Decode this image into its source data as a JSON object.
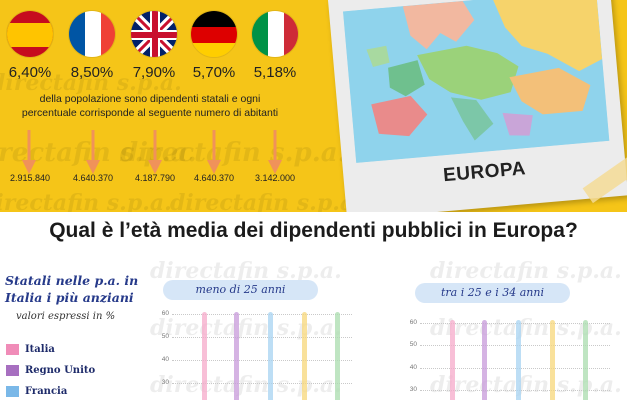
{
  "flags": [
    {
      "country": "Spagna",
      "percent": "6,40%",
      "icon": "spain-flag-icon"
    },
    {
      "country": "Francia",
      "percent": "8,50%",
      "icon": "france-flag-icon"
    },
    {
      "country": "Regno Unito",
      "percent": "7,90%",
      "icon": "uk-flag-icon"
    },
    {
      "country": "Germania",
      "percent": "5,70%",
      "icon": "germany-flag-icon"
    },
    {
      "country": "Italia",
      "percent": "5,18%",
      "icon": "italy-flag-icon"
    }
  ],
  "description": {
    "line1": "della popolazione sono dipendenti statali e ogni",
    "line2": "percentuale corrisponde al seguente numero di abitanti"
  },
  "numbers": [
    "2.915.840",
    "4.640.370",
    "4.187.790",
    "4.640.370",
    "3.142.000"
  ],
  "map": {
    "label": "EUROPA",
    "icon": "europe-map-illustration"
  },
  "watermark": "directafin s.p.a.",
  "question": "Qual è l’età media dei dipendenti pubblici in Europa?",
  "sidebar": {
    "title_line1": "Statali nelle p.a. in",
    "title_line2": "Italia i più anziani",
    "subtitle": "valori espressi in %",
    "legend": [
      {
        "label": "Italia",
        "color": "#f08cb8"
      },
      {
        "label": "Regno Unito",
        "color": "#a76fc0"
      },
      {
        "label": "Francia",
        "color": "#7ab8e8"
      }
    ]
  },
  "panels": [
    {
      "title": "meno di 25 anni",
      "ticks": [
        "60",
        "50",
        "40",
        "30"
      ]
    },
    {
      "title": "tra i 25 e i 34 anni",
      "ticks": [
        "60",
        "50",
        "40",
        "30"
      ]
    }
  ],
  "colors": {
    "yellow": "#f5c518",
    "arrow": "#f0925a",
    "navy": "#263a8a",
    "bar_colors": [
      "#f6a9c9",
      "#c79ad9",
      "#a7d3f2",
      "#f7d77a",
      "#a9dcae"
    ]
  }
}
